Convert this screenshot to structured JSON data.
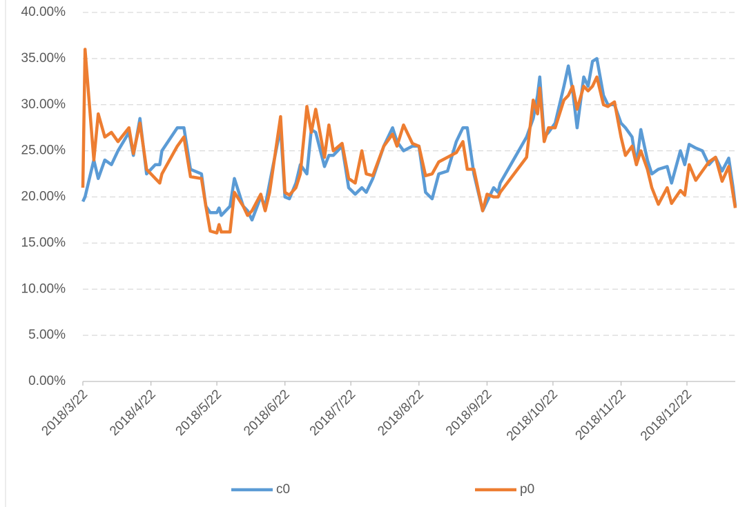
{
  "chart_data": {
    "type": "line",
    "x": [
      "2018/3/22",
      "2018/3/23",
      "2018/3/25",
      "2018/3/27",
      "2018/3/29",
      "2018/4/1",
      "2018/4/4",
      "2018/4/7",
      "2018/4/12",
      "2018/4/14",
      "2018/4/17",
      "2018/4/20",
      "2018/4/24",
      "2018/4/26",
      "2018/4/27",
      "2018/5/4",
      "2018/5/7",
      "2018/5/10",
      "2018/5/15",
      "2018/5/17",
      "2018/5/19",
      "2018/5/22",
      "2018/5/23",
      "2018/5/24",
      "2018/5/28",
      "2018/5/30",
      "2018/6/3",
      "2018/6/5",
      "2018/6/7",
      "2018/6/11",
      "2018/6/13",
      "2018/6/15",
      "2018/6/20",
      "2018/6/22",
      "2018/6/24",
      "2018/6/27",
      "2018/6/29",
      "2018/7/2",
      "2018/7/4",
      "2018/7/6",
      "2018/7/10",
      "2018/7/12",
      "2018/7/14",
      "2018/7/18",
      "2018/7/21",
      "2018/7/24",
      "2018/7/27",
      "2018/7/29",
      "2018/8/1",
      "2018/8/6",
      "2018/8/10",
      "2018/8/12",
      "2018/8/15",
      "2018/8/19",
      "2018/8/22",
      "2018/8/25",
      "2018/8/28",
      "2018/8/31",
      "2018/9/4",
      "2018/9/8",
      "2018/9/11",
      "2018/9/13",
      "2018/9/16",
      "2018/9/20",
      "2018/9/22",
      "2018/9/25",
      "2018/9/27",
      "2018/9/28",
      "2018/10/10",
      "2018/10/13",
      "2018/10/15",
      "2018/10/16",
      "2018/10/18",
      "2018/10/20",
      "2018/10/23",
      "2018/10/27",
      "2018/10/29",
      "2018/10/31",
      "2018/11/2",
      "2018/11/5",
      "2018/11/7",
      "2018/11/9",
      "2018/11/11",
      "2018/11/14",
      "2018/11/16",
      "2018/11/19",
      "2018/11/22",
      "2018/11/24",
      "2018/11/27",
      "2018/11/29",
      "2018/12/1",
      "2018/12/4",
      "2018/12/6",
      "2018/12/9",
      "2018/12/13",
      "2018/12/15",
      "2018/12/19",
      "2018/12/21",
      "2018/12/23",
      "2018/12/26",
      "2018/12/29",
      "2019/1/1",
      "2019/1/4",
      "2019/1/7",
      "2019/1/10",
      "2019/1/12",
      "2019/1/13"
    ],
    "series": [
      {
        "name": "c0",
        "color": "#5b9bd5",
        "values": [
          19.5,
          20,
          22,
          24,
          22,
          24,
          23.5,
          25,
          27,
          24.5,
          28.5,
          22.5,
          23.5,
          23.5,
          25,
          27.5,
          27.5,
          23,
          22.5,
          19,
          18.3,
          18.3,
          18.8,
          18,
          19,
          22,
          19,
          18.5,
          17.5,
          20,
          19,
          21.5,
          27.5,
          20,
          19.8,
          21.5,
          23.5,
          22.5,
          27.3,
          27,
          23.3,
          24.5,
          24.5,
          25.5,
          21,
          20.3,
          21,
          20.5,
          22,
          25.5,
          27.5,
          26,
          25,
          25.5,
          25.5,
          20.5,
          19.8,
          22.5,
          22.8,
          26,
          27.5,
          27.5,
          22.5,
          18.5,
          19.5,
          21,
          20.5,
          21.5,
          26.5,
          28.5,
          31,
          33,
          26.5,
          27,
          28,
          32,
          34.2,
          31.5,
          27.5,
          33,
          32,
          34.7,
          35,
          31,
          30,
          30,
          28,
          27.5,
          26.5,
          23.5,
          27.3,
          24,
          22.5,
          23,
          23.3,
          21.5,
          25,
          23.5,
          25.7,
          25.3,
          25,
          23.5,
          24.3,
          22.8,
          24.2,
          21,
          19
        ]
      },
      {
        "name": "p0",
        "color": "#ed7d31",
        "values": [
          21,
          36,
          30,
          24,
          29,
          26.5,
          27,
          26,
          27.5,
          24.7,
          28,
          23,
          22,
          21.5,
          22.5,
          25.5,
          26.5,
          22.2,
          22,
          19,
          16.3,
          16.1,
          17,
          16.2,
          16.2,
          20.5,
          19,
          18,
          18.5,
          20.3,
          18.5,
          20.5,
          28.7,
          20.5,
          20.2,
          21,
          22.5,
          29.8,
          27,
          29.5,
          24.3,
          27.8,
          25,
          25.8,
          22,
          21.5,
          25,
          22.5,
          22.3,
          25.5,
          26.8,
          25.5,
          27.8,
          25.8,
          25.5,
          22.3,
          22.5,
          23.8,
          24.3,
          24.8,
          26,
          23,
          23,
          18.5,
          20.3,
          20,
          20,
          20.5,
          24.3,
          30.5,
          29,
          31.8,
          26,
          27.5,
          27.5,
          30.5,
          31,
          32,
          29.5,
          32,
          31.5,
          32,
          33,
          30,
          29.8,
          30.3,
          26.5,
          24.5,
          25.5,
          23.5,
          25,
          23,
          21,
          19.2,
          21,
          19.3,
          20.7,
          20.2,
          23.5,
          21.8,
          22.8,
          23.8,
          24.3,
          21.7,
          23.3,
          20.3,
          18.8
        ]
      }
    ],
    "xlim": [
      "2018/3/22",
      "2019/1/13"
    ],
    "xticks": [
      "2018/3/22",
      "2018/4/22",
      "2018/5/22",
      "2018/6/22",
      "2018/7/22",
      "2018/8/22",
      "2018/9/22",
      "2018/10/22",
      "2018/11/22",
      "2018/12/22"
    ],
    "ylim": [
      0,
      40
    ],
    "yticks": [
      {
        "value": 0,
        "label": "0.00%"
      },
      {
        "value": 5,
        "label": "5.00%"
      },
      {
        "value": 10,
        "label": "10.00%"
      },
      {
        "value": 15,
        "label": "15.00%"
      },
      {
        "value": 20,
        "label": "20.00%"
      },
      {
        "value": 25,
        "label": "25.00%"
      },
      {
        "value": 30,
        "label": "30.00%"
      },
      {
        "value": 35,
        "label": "35.00%"
      },
      {
        "value": 40,
        "label": "40.00%"
      }
    ],
    "grid": true,
    "legend": "bottom"
  }
}
